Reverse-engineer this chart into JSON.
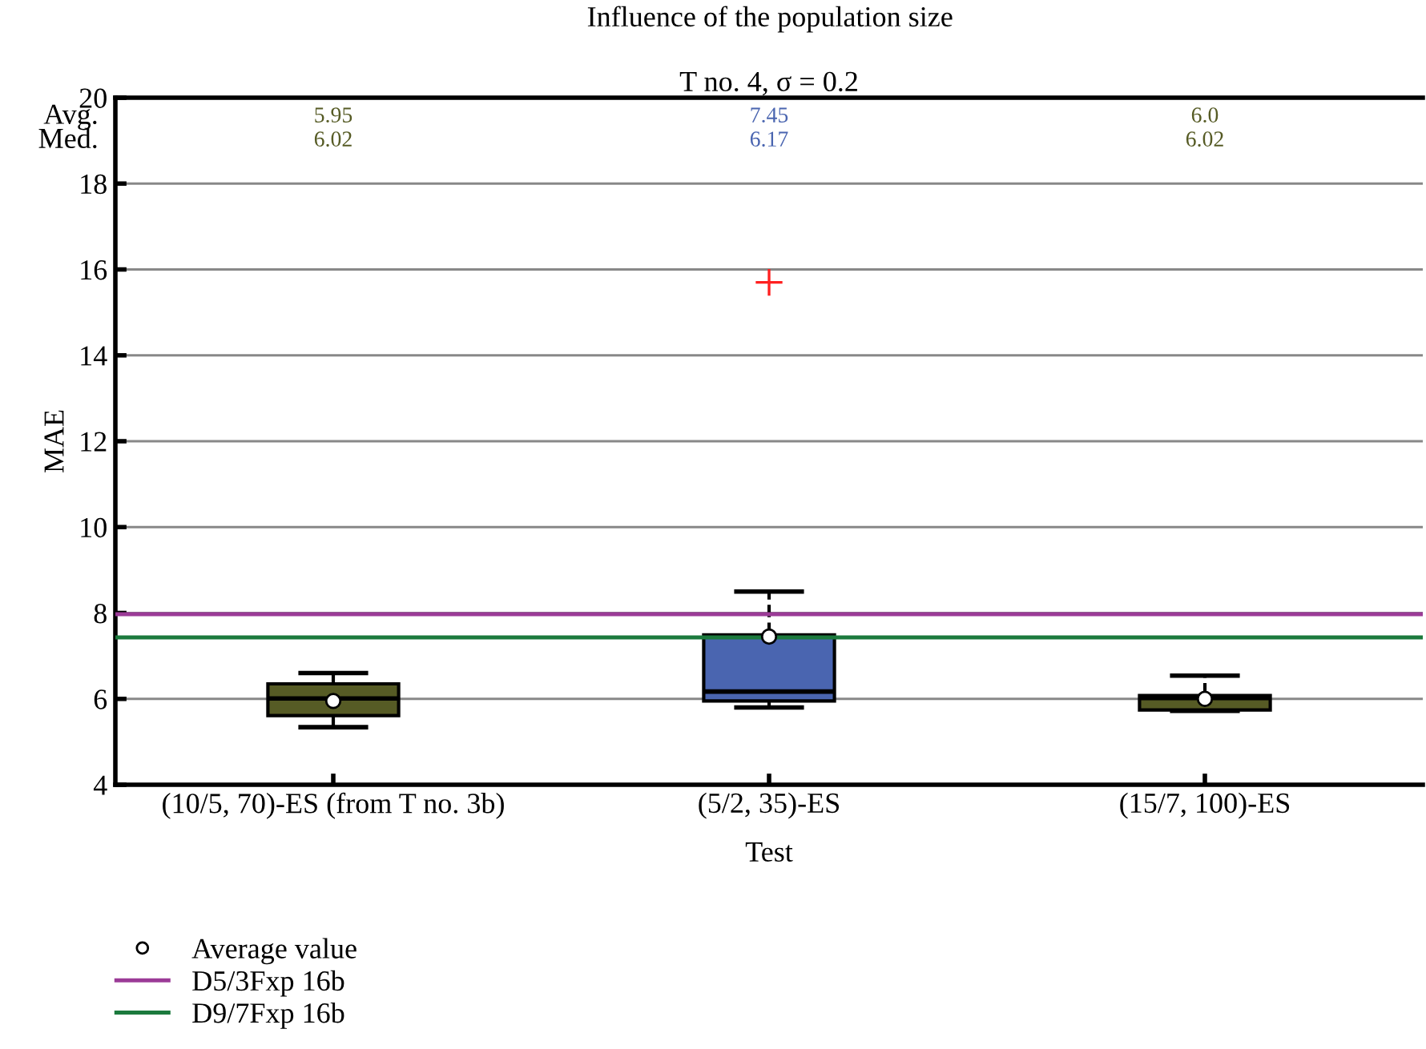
{
  "chart_data": {
    "type": "box",
    "title": "Influence of the population size",
    "subtitle": "T no. 4, σ = 0.2",
    "xlabel": "Test",
    "ylabel": "MAE",
    "categories": [
      "(10/5, 70)-ES (from T no. 3b)",
      "(5/2, 35)-ES",
      "(15/7, 100)-ES"
    ],
    "boxes": [
      {
        "low": 5.34,
        "q1": 5.61,
        "median": 6.01,
        "q3": 6.35,
        "high": 6.6
      },
      {
        "low": 5.8,
        "q1": 5.95,
        "median": 6.17,
        "q3": 7.49,
        "high": 8.5,
        "outliers": [
          15.7
        ]
      },
      {
        "low": 5.72,
        "q1": 5.74,
        "median": 6.02,
        "q3": 6.08,
        "high": 6.54
      }
    ],
    "colors": [
      "#565b25",
      "#4a65b0",
      "#565b25"
    ],
    "series": [
      {
        "name": "Average value",
        "type": "scatter",
        "x": [
          "(10/5, 70)-ES (from T no. 3b)",
          "(5/2, 35)-ES",
          "(15/7, 100)-ES"
        ],
        "values": [
          5.95,
          7.45,
          6.0
        ],
        "marker": "circle",
        "color": "#ffffff"
      }
    ],
    "ref_lines": [
      {
        "axis": "y",
        "value": 7.97,
        "label": "D5/3Fxp 16b",
        "color": "#9b3b97"
      },
      {
        "axis": "y",
        "value": 7.43,
        "label": "D9/7Fxp 16b",
        "color": "#1b7a3d"
      }
    ],
    "annotations": [
      "Avg.",
      "Med.",
      "5.95",
      "6.02",
      "7.45",
      "6.17",
      "6.0",
      "6.02"
    ],
    "ylim": [
      4,
      20
    ],
    "yticks": [
      4,
      6,
      8,
      10,
      12,
      14,
      16,
      18,
      20
    ],
    "grid": "y",
    "legend": "bottom left"
  }
}
